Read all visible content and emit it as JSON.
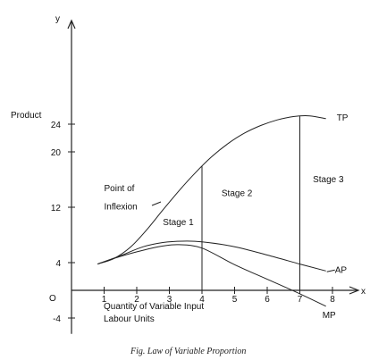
{
  "chart_data": {
    "type": "line",
    "title": "",
    "caption": "Fig. Law of Variable Proportion",
    "ylabel": "Product",
    "xlabel_line1": "Quantity of Variable Input",
    "xlabel_line2": "Labour Units",
    "axis_letters": {
      "x": "x",
      "y": "y",
      "origin": "O"
    },
    "xlim": [
      0,
      9
    ],
    "ylim": [
      -5,
      28
    ],
    "x_ticks": [
      {
        "value": 1,
        "label": "1"
      },
      {
        "value": 2,
        "label": "2"
      },
      {
        "value": 3,
        "label": "3"
      },
      {
        "value": 4,
        "label": "4"
      },
      {
        "value": 5,
        "label": "5"
      },
      {
        "value": 6,
        "label": "6"
      },
      {
        "value": 7,
        "label": "7"
      },
      {
        "value": 8,
        "label": "8"
      }
    ],
    "y_ticks": [
      {
        "value": -4,
        "label": "-4"
      },
      {
        "value": 4,
        "label": "4"
      },
      {
        "value": 12,
        "label": "12"
      },
      {
        "value": 20,
        "label": "20"
      },
      {
        "value": 24,
        "label": "24"
      }
    ],
    "series": [
      {
        "name": "TP",
        "x": [
          0.8,
          1.3,
          1.8,
          2.3,
          2.8,
          3.3,
          3.8,
          4.3,
          4.8,
          5.3,
          5.8,
          6.3,
          6.8,
          7.3,
          7.8
        ],
        "y": [
          3.8,
          4.6,
          6.2,
          8.7,
          11.6,
          14.4,
          17.0,
          19.3,
          21.2,
          22.7,
          23.8,
          24.6,
          25.1,
          25.2,
          24.8
        ]
      },
      {
        "name": "AP",
        "x": [
          0.8,
          1.5,
          2.2,
          2.8,
          3.4,
          4.0,
          5.0,
          6.0,
          7.0,
          7.8
        ],
        "y": [
          3.8,
          5.0,
          6.3,
          6.9,
          7.1,
          7.0,
          6.3,
          5.1,
          3.8,
          2.8
        ]
      },
      {
        "name": "MP",
        "x": [
          0.8,
          1.5,
          2.2,
          2.8,
          3.3,
          4.0,
          5.0,
          6.0,
          7.0,
          7.8
        ],
        "y": [
          3.8,
          4.9,
          5.8,
          6.4,
          6.6,
          6.1,
          3.7,
          1.6,
          -0.5,
          -2.3
        ]
      }
    ],
    "vertical_lines": [
      4,
      7
    ],
    "annotations": [
      {
        "text": "Point of",
        "x": 1.0,
        "y": 14.3
      },
      {
        "text": "Inflexion",
        "x": 1.0,
        "y": 11.7
      },
      {
        "text": "Stage 1",
        "x": 2.8,
        "y": 9.4
      },
      {
        "text": "Stage 2",
        "x": 4.6,
        "y": 13.6
      },
      {
        "text": "Stage 3",
        "x": 7.4,
        "y": 15.6
      }
    ]
  }
}
